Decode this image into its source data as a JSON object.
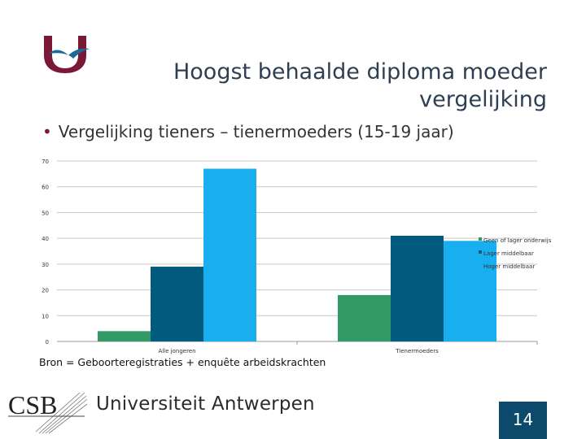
{
  "title_line1": "Hoogst behaalde diploma moeder",
  "title_line2": "vergelijking",
  "bullet": "Vergelijking tieners – tienermoeders (15-19 jaar)",
  "source": "Bron = Geboorteregistraties + enquête arbeidskrachten",
  "footer": {
    "csb_logo_text": "CSB",
    "university": "Universiteit Antwerpen",
    "page_number": "14"
  },
  "colors": {
    "brand": "#7a1836",
    "footer_box": "#0b4a6a"
  },
  "chart_data": {
    "type": "bar",
    "categories": [
      "Alle jongeren",
      "Tienermoeders"
    ],
    "series": [
      {
        "name": "Geen of lager onderwijs",
        "values": [
          4,
          18
        ],
        "color": "#339966"
      },
      {
        "name": "Lager middelbaar",
        "values": [
          29,
          41
        ],
        "color": "#005b7f"
      },
      {
        "name": "Hoger middelbaar",
        "values": [
          67,
          39
        ],
        "color": "#19aeee"
      }
    ],
    "y_ticks": [
      "0",
      "10",
      "20",
      "30",
      "40",
      "50",
      "60",
      "70"
    ],
    "ylim": [
      0,
      70
    ],
    "grid": true,
    "legend": "right"
  }
}
